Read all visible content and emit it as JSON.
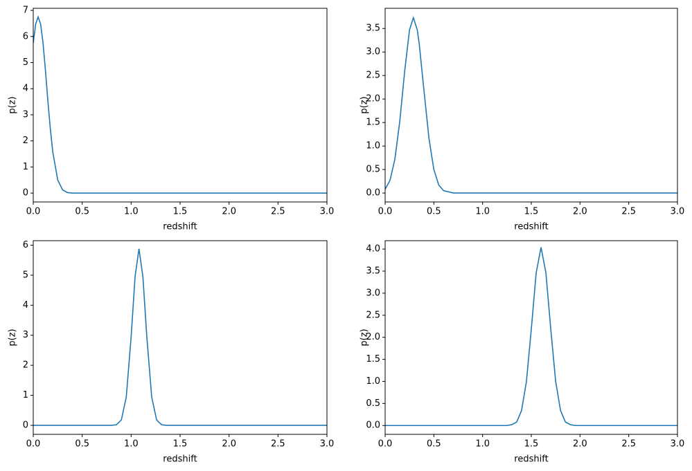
{
  "chart_data": [
    {
      "type": "line",
      "xlabel": "redshift",
      "ylabel": "p(z)",
      "x": [
        0,
        0.025,
        0.05,
        0.075,
        0.1,
        0.125,
        0.15,
        0.175,
        0.2,
        0.25,
        0.3,
        0.35,
        0.4,
        3.0
      ],
      "series": [
        {
          "color": "#1f77b4",
          "values": [
            5.75,
            6.48,
            6.75,
            6.48,
            5.75,
            4.68,
            3.5,
            2.44,
            1.56,
            0.5,
            0.12,
            0.02,
            0,
            0
          ]
        }
      ],
      "xlim": [
        0,
        3
      ],
      "ylim": [
        -0.34,
        7.08
      ],
      "xticks": [
        {
          "value": 0,
          "label": "0.0"
        },
        0.5,
        {
          "value": 1,
          "label": "1.0"
        },
        1.5,
        {
          "value": 2,
          "label": "2.0"
        },
        2.5,
        {
          "value": 3,
          "label": "3.0"
        }
      ],
      "yticks": [
        0,
        1,
        2,
        3,
        4,
        5,
        6,
        7
      ]
    },
    {
      "type": "line",
      "xlabel": "redshift",
      "ylabel": "p(z)",
      "x": [
        0,
        0.05,
        0.1,
        0.15,
        0.2,
        0.25,
        0.29,
        0.33,
        0.35,
        0.4,
        0.45,
        0.5,
        0.55,
        0.6,
        0.7,
        3.0
      ],
      "series": [
        {
          "color": "#1f77b4",
          "values": [
            0.08,
            0.27,
            0.72,
            1.52,
            2.58,
            3.47,
            3.73,
            3.47,
            3.17,
            2.15,
            1.16,
            0.5,
            0.17,
            0.05,
            0,
            0
          ]
        }
      ],
      "xlim": [
        0,
        3
      ],
      "ylim": [
        -0.19,
        3.93
      ],
      "xticks": [
        {
          "value": 0,
          "label": "0.0"
        },
        0.5,
        {
          "value": 1,
          "label": "1.0"
        },
        1.5,
        {
          "value": 2,
          "label": "2.0"
        },
        2.5,
        {
          "value": 3,
          "label": "3.0"
        }
      ],
      "yticks": [
        {
          "value": 0,
          "label": "0.0"
        },
        0.5,
        {
          "value": 1,
          "label": "1.0"
        },
        1.5,
        {
          "value": 2,
          "label": "2.0"
        },
        2.5,
        {
          "value": 3,
          "label": "3.0"
        },
        3.5
      ]
    },
    {
      "type": "line",
      "xlabel": "redshift",
      "ylabel": "p(z)",
      "x": [
        0,
        0.8,
        0.85,
        0.9,
        0.95,
        1.0,
        1.04,
        1.08,
        1.12,
        1.16,
        1.21,
        1.26,
        1.31,
        1.36,
        3.0
      ],
      "series": [
        {
          "color": "#1f77b4",
          "values": [
            0,
            0,
            0.02,
            0.18,
            0.94,
            2.95,
            4.95,
            5.88,
            4.95,
            2.95,
            0.94,
            0.18,
            0.02,
            0,
            0
          ]
        }
      ],
      "xlim": [
        0,
        3
      ],
      "ylim": [
        -0.3,
        6.15
      ],
      "xticks": [
        {
          "value": 0,
          "label": "0.0"
        },
        0.5,
        {
          "value": 1,
          "label": "1.0"
        },
        1.5,
        {
          "value": 2,
          "label": "2.0"
        },
        2.5,
        {
          "value": 3,
          "label": "3.0"
        }
      ],
      "yticks": [
        0,
        1,
        2,
        3,
        4,
        5,
        6
      ]
    },
    {
      "type": "line",
      "xlabel": "redshift",
      "ylabel": "p(z)",
      "x": [
        0,
        1.25,
        1.3,
        1.35,
        1.4,
        1.45,
        1.5,
        1.55,
        1.6,
        1.65,
        1.7,
        1.75,
        1.8,
        1.85,
        1.9,
        1.95,
        3.0
      ],
      "series": [
        {
          "color": "#1f77b4",
          "values": [
            0,
            0,
            0.02,
            0.08,
            0.34,
            1.0,
            2.18,
            3.46,
            4.04,
            3.46,
            2.18,
            1.0,
            0.34,
            0.08,
            0.02,
            0,
            0
          ]
        }
      ],
      "xlim": [
        0,
        3
      ],
      "ylim": [
        -0.2,
        4.19
      ],
      "xticks": [
        {
          "value": 0,
          "label": "0.0"
        },
        0.5,
        {
          "value": 1,
          "label": "1.0"
        },
        1.5,
        {
          "value": 2,
          "label": "2.0"
        },
        2.5,
        {
          "value": 3,
          "label": "3.0"
        }
      ],
      "yticks": [
        {
          "value": 0,
          "label": "0.0"
        },
        0.5,
        {
          "value": 1,
          "label": "1.0"
        },
        1.5,
        {
          "value": 2,
          "label": "2.0"
        },
        2.5,
        {
          "value": 3,
          "label": "3.0"
        },
        3.5,
        {
          "value": 4,
          "label": "4.0"
        }
      ]
    }
  ]
}
